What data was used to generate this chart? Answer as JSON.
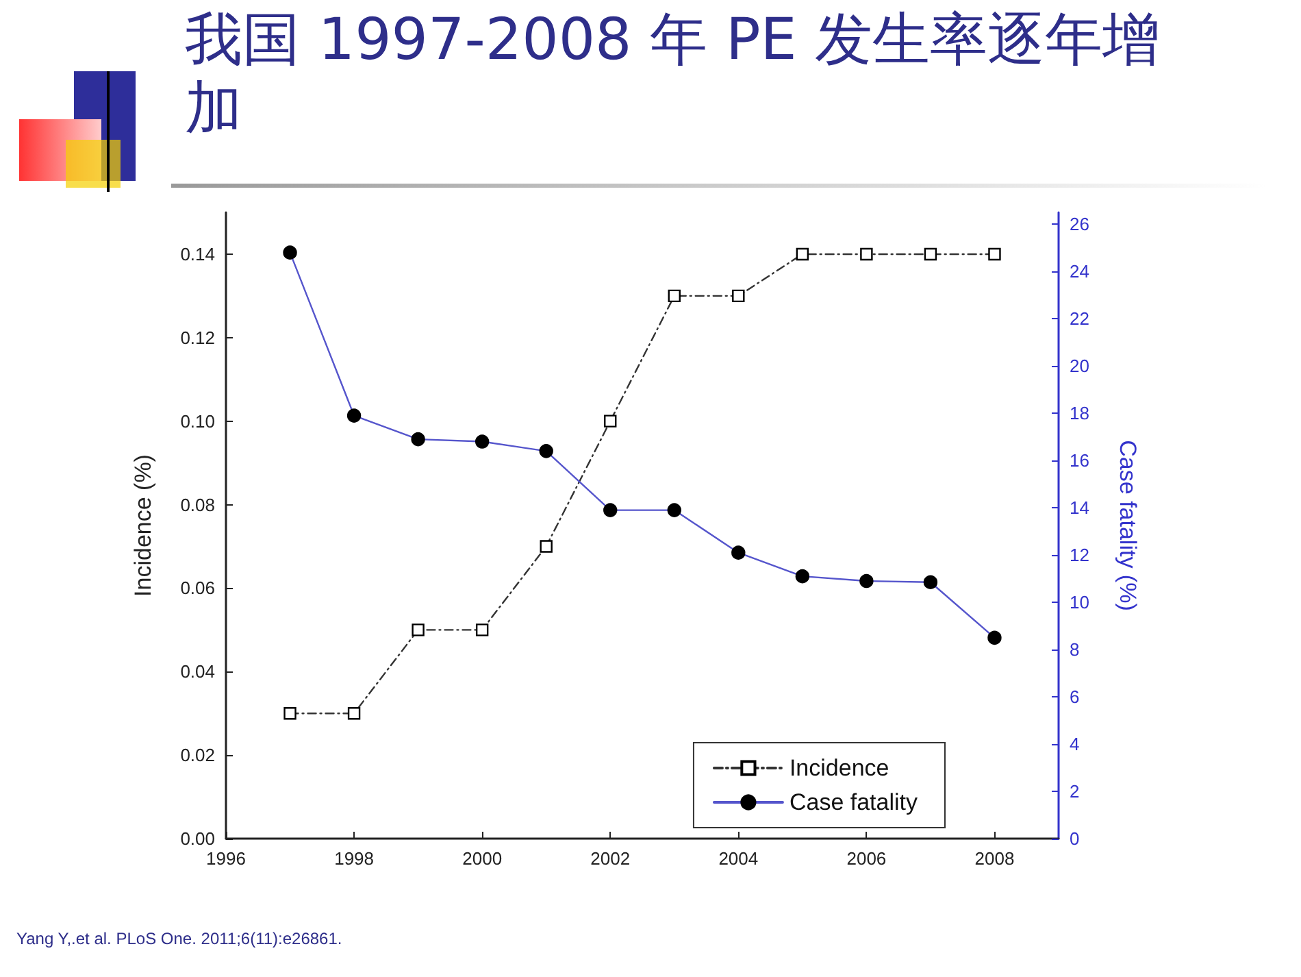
{
  "chart_data": {
    "type": "line",
    "title": "我国 1997-2008 年 PE 发生率逐年增加",
    "xlabel": null,
    "ylabel": "Incidence (%)",
    "y2label": "Case fatality (%)",
    "x": [
      1997,
      1998,
      1999,
      2000,
      2001,
      2002,
      2003,
      2004,
      2005,
      2006,
      2007,
      2008
    ],
    "series": [
      {
        "name": "Incidence",
        "color": "#333333",
        "marker": "square",
        "line_style": "dashed",
        "values": [
          0.03,
          0.03,
          0.05,
          0.05,
          0.07,
          0.1,
          0.13,
          0.13,
          0.14,
          0.14,
          0.14,
          0.14
        ]
      },
      {
        "name": "Case fatality",
        "color": "#5555cc",
        "marker": "circle",
        "line_style": "solid",
        "axis": "y2",
        "values": [
          24.8,
          17.9,
          16.9,
          16.8,
          16.4,
          13.9,
          13.9,
          12.1,
          11.1,
          10.9,
          10.85,
          8.5
        ]
      }
    ],
    "xlim": [
      1996,
      2009
    ],
    "xticks": [
      1996,
      1998,
      2000,
      2002,
      2004,
      2006,
      2008
    ],
    "ylim": [
      0,
      0.15
    ],
    "yticks": [
      {
        "value": 0,
        "label": "0.00"
      },
      {
        "value": 0.02,
        "label": "0.02"
      },
      {
        "value": 0.04,
        "label": "0.04"
      },
      {
        "value": 0.06,
        "label": "0.06"
      },
      {
        "value": 0.08,
        "label": "0.08"
      },
      {
        "value": 0.1,
        "label": "0.10"
      },
      {
        "value": 0.12,
        "label": "0.12"
      },
      {
        "value": 0.14,
        "label": "0.14"
      }
    ],
    "y2lim": [
      0,
      26.5
    ],
    "y2ticks": [
      0,
      2,
      4,
      6,
      8,
      10,
      12,
      14,
      16,
      18,
      20,
      22,
      24,
      26
    ],
    "grid": false,
    "legend": "bottom right",
    "annotations": [
      "Yang Y,.et al. PLoS One. 2011;6(11):e26861."
    ]
  }
}
